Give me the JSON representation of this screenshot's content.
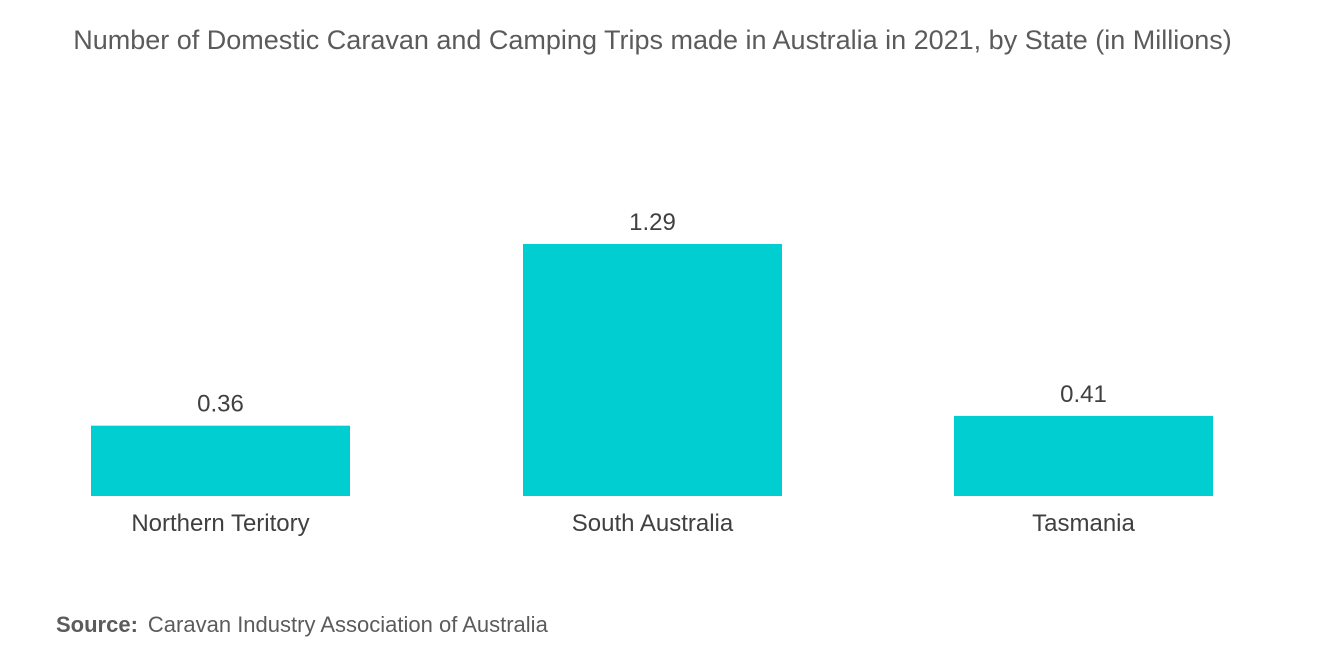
{
  "chart_data": {
    "type": "bar",
    "title": "Number of Domestic Caravan and Camping Trips made in Australia in 2021, by State (in Millions)",
    "categories": [
      "Northern Teritory",
      "South Australia",
      "Tasmania"
    ],
    "values": [
      0.36,
      1.29,
      0.41
    ],
    "value_labels": [
      "0.36",
      "1.29",
      "0.41"
    ],
    "xlabel": "",
    "ylabel": "",
    "ylim": [
      0,
      1.29
    ],
    "grid": false,
    "legend": "none",
    "bar_color": "#00ced1"
  },
  "source": {
    "label": "Source:",
    "text": "Caravan Industry Association of Australia"
  }
}
